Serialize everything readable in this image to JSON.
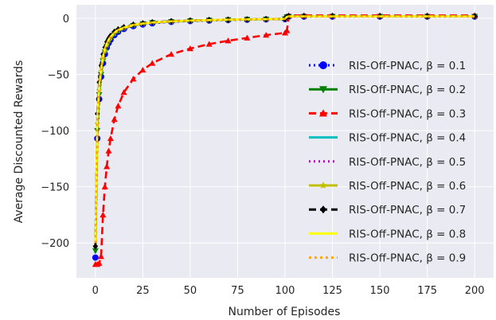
{
  "chart_data": {
    "type": "line",
    "title": "",
    "xlabel": "Number of Episodes",
    "ylabel": "Average Discounted Rewards",
    "xlim": [
      -10,
      210
    ],
    "ylim": [
      -231,
      12
    ],
    "xticks": [
      0,
      25,
      50,
      75,
      100,
      125,
      150,
      175,
      200
    ],
    "yticks": [
      0,
      -50,
      -100,
      -150,
      -200
    ],
    "xtick_labels": [
      "0",
      "25",
      "50",
      "75",
      "100",
      "125",
      "150",
      "175",
      "200"
    ],
    "ytick_labels": [
      "0",
      "−50",
      "−100",
      "−150",
      "−200"
    ],
    "grid": true,
    "background": "#eaeaf2",
    "legend_position": "center-right",
    "x": [
      0,
      1,
      2,
      3,
      4,
      5,
      6,
      7,
      8,
      10,
      12,
      15,
      20,
      25,
      30,
      40,
      50,
      60,
      70,
      80,
      90,
      100,
      101,
      102,
      110,
      125,
      150,
      175,
      200
    ],
    "series": [
      {
        "name": "RIS-Off-PNAC, β = 0.1",
        "color": "#0000ff",
        "dash": "2 4",
        "marker": "circle",
        "values": [
          -213,
          -107,
          -72,
          -52,
          -40,
          -32,
          -26,
          -22,
          -19,
          -15,
          -12,
          -9.5,
          -7,
          -5.5,
          -4.5,
          -3.2,
          -2.5,
          -2,
          -1.6,
          -1.3,
          -1,
          -0.8,
          1,
          1.5,
          1.5,
          1.5,
          1.5,
          1.5,
          1.5
        ]
      },
      {
        "name": "RIS-Off-PNAC, β = 0.2",
        "color": "#008000",
        "dash": "",
        "marker": "triangle-down",
        "values": [
          -207,
          -100,
          -68,
          -50,
          -38,
          -30,
          -25,
          -21,
          -18,
          -14,
          -11.5,
          -9,
          -6.5,
          -5,
          -4,
          -3,
          -2.3,
          -1.8,
          -1.4,
          -1.1,
          -0.9,
          -0.6,
          1.2,
          1.6,
          1.6,
          1.6,
          1.6,
          1.6,
          1.6
        ]
      },
      {
        "name": "RIS-Off-PNAC, β = 0.3",
        "color": "#ff0000",
        "dash": "9 5",
        "marker": "triangle-up",
        "values": [
          -219,
          -219,
          -218,
          -212,
          -175,
          -150,
          -132,
          -118,
          -107,
          -90,
          -78,
          -66,
          -54,
          -46,
          -40,
          -32,
          -27,
          -23,
          -20,
          -17.5,
          -15,
          -13,
          -11,
          2.5,
          2.5,
          2.5,
          2.5,
          2.5,
          2.5
        ]
      },
      {
        "name": "RIS-Off-PNAC, β = 0.4",
        "color": "#00bfbf",
        "dash": "",
        "marker": "none",
        "values": [
          -200,
          -90,
          -62,
          -46,
          -35,
          -28,
          -23,
          -19.5,
          -17,
          -13,
          -10.5,
          -8.5,
          -6,
          -4.8,
          -3.8,
          -2.8,
          -2.1,
          -1.6,
          -1.3,
          -1,
          -0.8,
          -0.5,
          1.3,
          1.7,
          1.7,
          1.7,
          1.7,
          1.7,
          1.7
        ]
      },
      {
        "name": "RIS-Off-PNAC, β = 0.5",
        "color": "#bf00bf",
        "dash": "2 4",
        "marker": "none",
        "values": [
          -202,
          -92,
          -63,
          -47,
          -36,
          -29,
          -24,
          -20,
          -17.5,
          -13.5,
          -11,
          -8.8,
          -6.2,
          -4.9,
          -3.9,
          -2.9,
          -2.2,
          -1.7,
          -1.3,
          -1.05,
          -0.85,
          -0.55,
          1.3,
          1.7,
          1.7,
          1.7,
          1.7,
          1.7,
          1.7
        ]
      },
      {
        "name": "RIS-Off-PNAC, β = 0.6",
        "color": "#bfbf00",
        "dash": "",
        "marker": "star",
        "values": [
          -203,
          -94,
          -64,
          -47,
          -36,
          -29,
          -24,
          -20,
          -17.5,
          -13.5,
          -11,
          -8.8,
          -6.2,
          -4.9,
          -3.9,
          -2.9,
          -2.2,
          -1.7,
          -1.3,
          -1.05,
          -0.85,
          -0.55,
          1.3,
          1.7,
          1.7,
          1.7,
          1.7,
          1.7,
          1.7
        ]
      },
      {
        "name": "RIS-Off-PNAC, β = 0.7",
        "color": "#000000",
        "dash": "9 5",
        "marker": "diamond",
        "values": [
          -203,
          -85,
          -57,
          -42,
          -32,
          -26,
          -21,
          -18,
          -15.5,
          -12,
          -9.8,
          -7.8,
          -5.6,
          -4.4,
          -3.5,
          -2.5,
          -1.9,
          -1.5,
          -1.2,
          -0.95,
          -0.75,
          -0.5,
          1.4,
          1.8,
          1.8,
          1.8,
          1.8,
          1.8,
          1.8
        ]
      },
      {
        "name": "RIS-Off-PNAC, β = 0.8",
        "color": "#ffff00",
        "dash": "",
        "marker": "none",
        "values": [
          -200,
          -88,
          -60,
          -45,
          -34,
          -27,
          -22.5,
          -19,
          -16.5,
          -12.8,
          -10.4,
          -8.3,
          -5.9,
          -4.7,
          -3.7,
          -2.7,
          -2,
          -1.6,
          -1.25,
          -1,
          -0.8,
          -0.5,
          1.3,
          1.7,
          1.7,
          1.7,
          1.7,
          1.7,
          1.7
        ]
      },
      {
        "name": "RIS-Off-PNAC, β = 0.9",
        "color": "#ffa500",
        "dash": "3 4",
        "marker": "none",
        "values": [
          -200,
          -88,
          -60,
          -45,
          -34,
          -27,
          -22.5,
          -19,
          -16.5,
          -12.8,
          -10.4,
          -8.3,
          -5.9,
          -4.7,
          -3.7,
          -2.7,
          -2,
          -1.6,
          -1.25,
          -1,
          -0.8,
          -0.5,
          1.3,
          1.7,
          1.7,
          1.7,
          1.7,
          1.7,
          1.7
        ]
      }
    ]
  }
}
